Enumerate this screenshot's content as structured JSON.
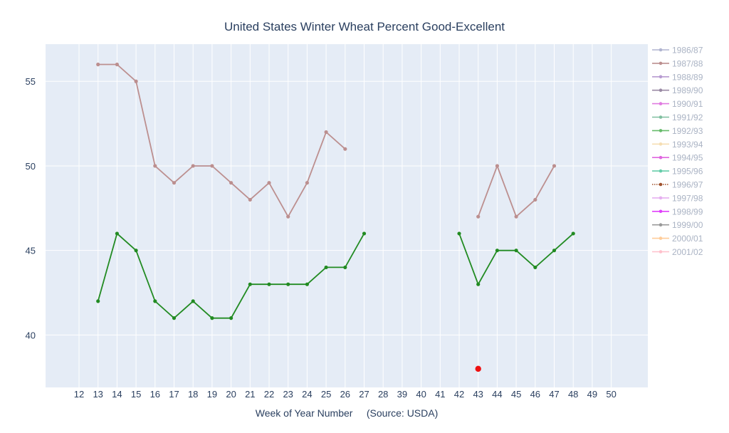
{
  "chart_data": {
    "type": "line",
    "title": "United States Winter Wheat Percent Good-Excellent",
    "xlabel": "Week of Year Number     (Source: USDA)",
    "ylabel": "",
    "x_categories": [
      "12",
      "13",
      "14",
      "15",
      "16",
      "17",
      "18",
      "19",
      "20",
      "21",
      "22",
      "23",
      "24",
      "25",
      "26",
      "27",
      "28",
      "39",
      "40",
      "41",
      "42",
      "43",
      "44",
      "45",
      "46",
      "47",
      "48",
      "49",
      "50"
    ],
    "y_ticks": [
      40,
      45,
      50,
      55
    ],
    "ylim": [
      36.9,
      57.2
    ],
    "grid": true,
    "legend_position": "right",
    "legend": [
      {
        "name": "1986/87",
        "color": "#b0b4d0",
        "style": "solid"
      },
      {
        "name": "1987/88",
        "color": "#bc8f8f",
        "style": "solid"
      },
      {
        "name": "1988/89",
        "color": "#b79bd1",
        "style": "solid"
      },
      {
        "name": "1989/90",
        "color": "#9a8aa4",
        "style": "solid"
      },
      {
        "name": "1990/91",
        "color": "#e07ae0",
        "style": "solid"
      },
      {
        "name": "1991/92",
        "color": "#7fbf9f",
        "style": "solid"
      },
      {
        "name": "1992/93",
        "color": "#66bb6a",
        "style": "solid"
      },
      {
        "name": "1993/94",
        "color": "#f5deb3",
        "style": "solid"
      },
      {
        "name": "1994/95",
        "color": "#e066e0",
        "style": "solid"
      },
      {
        "name": "1995/96",
        "color": "#66cdaa",
        "style": "solid"
      },
      {
        "name": "1996/97",
        "color": "#a0522d",
        "style": "dotted"
      },
      {
        "name": "1997/98",
        "color": "#e6b0f0",
        "style": "solid"
      },
      {
        "name": "1998/99",
        "color": "#e040fb",
        "style": "solid"
      },
      {
        "name": "1999/00",
        "color": "#999999",
        "style": "solid"
      },
      {
        "name": "2000/01",
        "color": "#ffcc99",
        "style": "solid"
      },
      {
        "name": "2001/02",
        "color": "#ffc0cb",
        "style": "solid"
      }
    ],
    "series": [
      {
        "color": "#bc8f8f",
        "segments": [
          {
            "x": [
              "13",
              "14",
              "15",
              "16",
              "17",
              "18",
              "19",
              "20",
              "21",
              "22",
              "23",
              "24",
              "25",
              "26"
            ],
            "y": [
              56,
              56,
              55,
              50,
              49,
              50,
              50,
              49,
              48,
              49,
              47,
              49,
              52,
              51
            ]
          },
          {
            "x": [
              "43",
              "44",
              "45",
              "46",
              "47"
            ],
            "y": [
              47,
              50,
              47,
              48,
              50
            ]
          }
        ]
      },
      {
        "color": "#228b22",
        "segments": [
          {
            "x": [
              "13",
              "14",
              "15",
              "16",
              "17",
              "18",
              "19",
              "20",
              "21",
              "22",
              "23",
              "24",
              "25",
              "26",
              "27"
            ],
            "y": [
              42,
              46,
              45,
              42,
              41,
              42,
              41,
              41,
              43,
              43,
              43,
              43,
              44,
              44,
              46
            ]
          },
          {
            "x": [
              "42",
              "43",
              "44",
              "45",
              "46",
              "47",
              "48"
            ],
            "y": [
              46,
              43,
              45,
              45,
              44,
              45,
              46
            ]
          }
        ]
      },
      {
        "color": "#ee1111",
        "marker_only": true,
        "segments": [
          {
            "x": [
              "43"
            ],
            "y": [
              38
            ]
          }
        ]
      }
    ]
  }
}
